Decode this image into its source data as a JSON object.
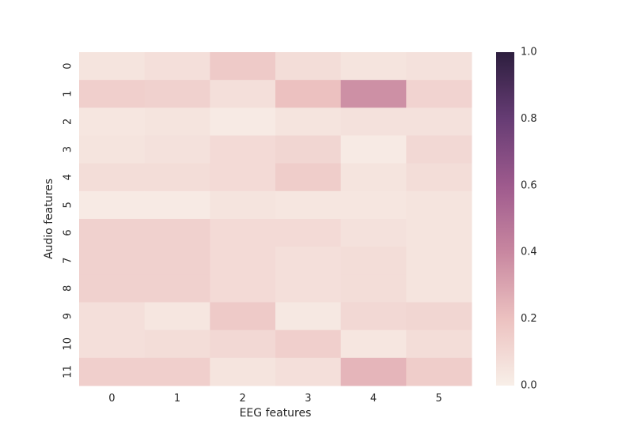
{
  "chart_data": {
    "type": "heatmap",
    "title": "",
    "xlabel": "EEG features",
    "ylabel": "Audio features",
    "x_categories": [
      "0",
      "1",
      "2",
      "3",
      "4",
      "5"
    ],
    "y_categories": [
      "0",
      "1",
      "2",
      "3",
      "4",
      "5",
      "6",
      "7",
      "8",
      "9",
      "10",
      "11"
    ],
    "values": [
      [
        0.05,
        0.07,
        0.16,
        0.08,
        0.05,
        0.06
      ],
      [
        0.14,
        0.13,
        0.07,
        0.2,
        0.37,
        0.12
      ],
      [
        0.04,
        0.05,
        0.02,
        0.05,
        0.06,
        0.06
      ],
      [
        0.05,
        0.06,
        0.09,
        0.11,
        0.02,
        0.1
      ],
      [
        0.08,
        0.08,
        0.09,
        0.15,
        0.05,
        0.08
      ],
      [
        0.02,
        0.02,
        0.05,
        0.04,
        0.04,
        0.05
      ],
      [
        0.13,
        0.13,
        0.09,
        0.09,
        0.06,
        0.05
      ],
      [
        0.13,
        0.13,
        0.09,
        0.07,
        0.08,
        0.05
      ],
      [
        0.13,
        0.13,
        0.09,
        0.07,
        0.08,
        0.05
      ],
      [
        0.07,
        0.04,
        0.16,
        0.03,
        0.1,
        0.11
      ],
      [
        0.07,
        0.08,
        0.1,
        0.14,
        0.04,
        0.08
      ],
      [
        0.14,
        0.14,
        0.05,
        0.07,
        0.24,
        0.15
      ]
    ],
    "vmin": 0.0,
    "vmax": 1.0,
    "colorbar_ticks": [
      "0.0",
      "0.2",
      "0.4",
      "0.6",
      "0.8",
      "1.0"
    ],
    "colormap": {
      "stops": [
        [
          0.0,
          "#f8efe8"
        ],
        [
          0.2,
          "#ecc1c0"
        ],
        [
          0.4,
          "#c887a0"
        ],
        [
          0.6,
          "#9e5a8d"
        ],
        [
          0.8,
          "#663c74"
        ],
        [
          1.0,
          "#2d1e3e"
        ]
      ]
    },
    "grid": false
  }
}
